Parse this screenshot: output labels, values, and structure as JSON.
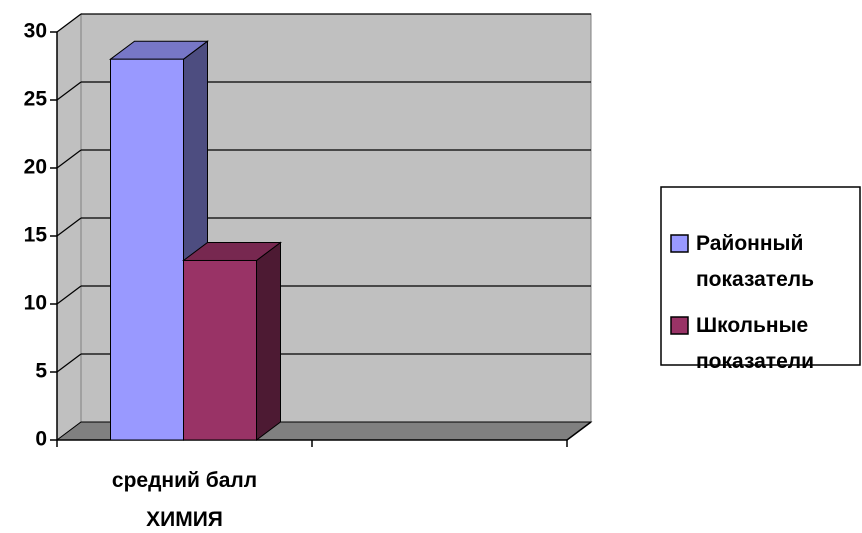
{
  "chart_data": {
    "type": "bar3d",
    "categories": [
      "средний балл ХИМИЯ",
      null
    ],
    "series": [
      {
        "name": "Районный показатель",
        "color": "#9999ff",
        "values": [
          28,
          null
        ]
      },
      {
        "name": "Школьные показатели",
        "color": "#993366",
        "values": [
          13.2,
          null
        ]
      }
    ],
    "ylim": [
      0,
      30
    ],
    "yticks": [
      0,
      5,
      10,
      15,
      20,
      25,
      30
    ],
    "grid": true,
    "legend": "right"
  }
}
